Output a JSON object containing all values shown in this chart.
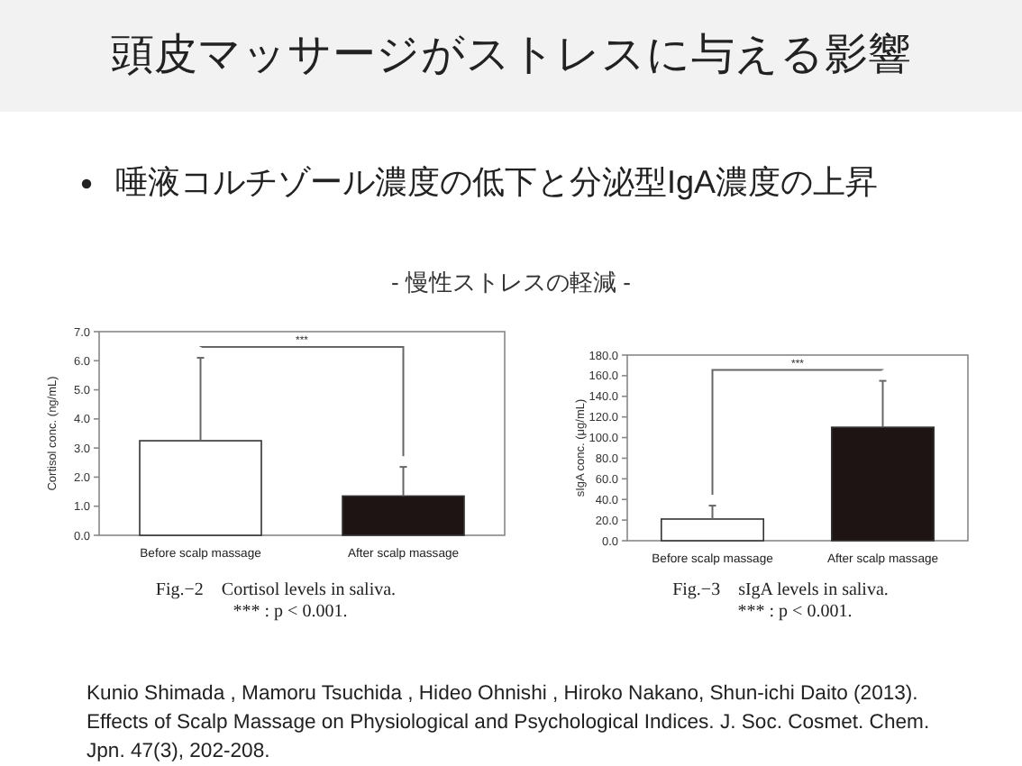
{
  "chart_data": [
    {
      "type": "other",
      "title": "頭皮マッサージがストレスに与える影響",
      "subtitle": "唾液コルチゾール濃度の低下と分泌型IgA濃度の上昇",
      "annotations": [
        "- 慢性ストレスの軽減 -",
        "Kunio Shimada , Mamoru Tsuchida , Hideo Ohnishi , Hiroko Nakano, Shun-ichi Daito (2013). Effects of Scalp Massage on Physiological and Psychological Indices. J. Soc. Cosmet. Chem. Jpn. 47(3), 202-208."
      ]
    },
    {
      "type": "bar",
      "ylabel": "Cortisol conc. (ng/mL)",
      "categories": [
        "Before scalp massage",
        "After scalp massage"
      ],
      "values": [
        3.25,
        1.35
      ],
      "errors": [
        [
          3.25,
          6.1
        ],
        [
          1.35,
          2.35
        ]
      ],
      "colors": [
        "#ffffff",
        "#1e1414"
      ],
      "ylim": [
        0,
        7
      ],
      "yticks": [
        {
          "value": 0,
          "label": "0.0"
        },
        {
          "value": 1,
          "label": "1.0"
        },
        {
          "value": 2,
          "label": "2.0"
        },
        {
          "value": 3,
          "label": "3.0"
        },
        {
          "value": 4,
          "label": "4.0"
        },
        {
          "value": 5,
          "label": "5.0"
        },
        {
          "value": 6,
          "label": "6.0"
        },
        {
          "value": 7,
          "label": "7.0"
        }
      ],
      "grid": false,
      "annotations": [
        "***",
        "Fig.−2　Cortisol levels in saliva.",
        "*** : p < 0.001."
      ]
    },
    {
      "type": "bar",
      "ylabel": "sIgA conc. (μg/mL)",
      "categories": [
        "Before scalp massage",
        "After scalp massage"
      ],
      "values": [
        21,
        110
      ],
      "errors": [
        [
          21,
          34
        ],
        [
          110,
          155
        ]
      ],
      "colors": [
        "#ffffff",
        "#1e1414"
      ],
      "ylim": [
        0,
        180
      ],
      "yticks": [
        {
          "value": 0,
          "label": "0.0"
        },
        {
          "value": 20,
          "label": "20.0"
        },
        {
          "value": 40,
          "label": "40.0"
        },
        {
          "value": 60,
          "label": "60.0"
        },
        {
          "value": 80,
          "label": "80.0"
        },
        {
          "value": 100,
          "label": "100.0"
        },
        {
          "value": 120,
          "label": "120.0"
        },
        {
          "value": 140,
          "label": "140.0"
        },
        {
          "value": 160,
          "label": "160.0"
        },
        {
          "value": 180,
          "label": "180.0"
        }
      ],
      "grid": false,
      "annotations": [
        "***",
        "Fig.−3　sIgA levels in saliva.",
        "*** : p < 0.001."
      ]
    }
  ]
}
